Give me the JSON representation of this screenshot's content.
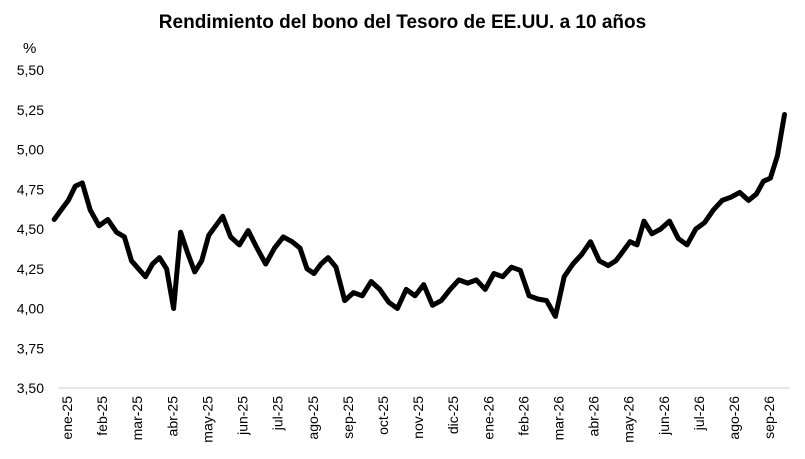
{
  "chart_data": {
    "type": "line",
    "title": "Rendimiento del bono del Tesoro de EE.UU. a 10 años",
    "ylabel": "%",
    "ylim": [
      3.5,
      5.5
    ],
    "yticks": [
      "3,50",
      "3,75",
      "4,00",
      "4,25",
      "4,50",
      "4,75",
      "5,00",
      "5,25",
      "5,50"
    ],
    "ytick_values": [
      3.5,
      3.75,
      4.0,
      4.25,
      4.5,
      4.75,
      5.0,
      5.25,
      5.5
    ],
    "xticks": [
      "ene-25",
      "feb-25",
      "mar-25",
      "abr-25",
      "may-25",
      "jun-25",
      "jul-25",
      "ago-25",
      "sep-25",
      "oct-25",
      "nov-25",
      "dic-25",
      "ene-26",
      "feb-26",
      "mar-26",
      "abr-26",
      "may-26",
      "jun-26",
      "jul-26",
      "ago-26",
      "sep-26"
    ],
    "grid": false,
    "line_color": "#000000",
    "series": [
      {
        "x": [
          "ene-25",
          "ene-25",
          "ene-25",
          "ene-25",
          "ene-25",
          "feb-25",
          "feb-25",
          "feb-25",
          "feb-25",
          "mar-25",
          "mar-25",
          "mar-25",
          "mar-25",
          "mar-25",
          "abr-25",
          "abr-25",
          "abr-25",
          "abr-25",
          "abr-25",
          "may-25",
          "may-25",
          "may-25",
          "may-25",
          "may-25",
          "jun-25",
          "jun-25",
          "jun-25",
          "jun-25",
          "jul-25",
          "jul-25",
          "jul-25",
          "jul-25",
          "ago-25",
          "ago-25",
          "ago-25",
          "ago-25",
          "ago-25",
          "sep-25",
          "sep-25",
          "sep-25",
          "sep-25",
          "oct-25",
          "oct-25",
          "oct-25",
          "oct-25",
          "nov-25",
          "nov-25",
          "nov-25",
          "nov-25",
          "dic-25",
          "dic-25",
          "dic-25",
          "dic-25",
          "ene-26",
          "ene-26",
          "ene-26",
          "ene-26",
          "feb-26",
          "feb-26",
          "feb-26",
          "feb-26",
          "mar-26",
          "mar-26",
          "mar-26",
          "mar-26",
          "abr-26",
          "abr-26",
          "abr-26",
          "abr-26",
          "may-26",
          "may-26",
          "may-26",
          "may-26",
          "may-26",
          "jun-26",
          "jun-26",
          "jun-26",
          "jun-26",
          "jul-26",
          "jul-26",
          "jul-26",
          "jul-26",
          "ago-26",
          "ago-26",
          "ago-26",
          "ago-26",
          "sep-26",
          "sep-26",
          "sep-26",
          "sep-26",
          "sep-26"
        ],
        "values": [
          4.56,
          4.62,
          4.68,
          4.77,
          4.79,
          4.62,
          4.52,
          4.56,
          4.48,
          4.45,
          4.3,
          4.25,
          4.2,
          4.28,
          4.32,
          4.25,
          4.0,
          4.48,
          4.35,
          4.23,
          4.3,
          4.46,
          4.52,
          4.58,
          4.45,
          4.4,
          4.49,
          4.38,
          4.28,
          4.38,
          4.45,
          4.42,
          4.38,
          4.25,
          4.22,
          4.28,
          4.32,
          4.26,
          4.05,
          4.1,
          4.08,
          4.17,
          4.12,
          4.04,
          4.0,
          4.12,
          4.08,
          4.15,
          4.02,
          4.05,
          4.12,
          4.18,
          4.16,
          4.18,
          4.12,
          4.22,
          4.2,
          4.26,
          4.24,
          4.08,
          4.06,
          4.05,
          3.95,
          4.2,
          4.28,
          4.34,
          4.42,
          4.3,
          4.27,
          4.3,
          4.36,
          4.42,
          4.4,
          4.55,
          4.47,
          4.5,
          4.55,
          4.44,
          4.4,
          4.5,
          4.54,
          4.62,
          4.68,
          4.7,
          4.73,
          4.68,
          4.72,
          4.8,
          4.82,
          4.96,
          5.22
        ]
      }
    ]
  }
}
